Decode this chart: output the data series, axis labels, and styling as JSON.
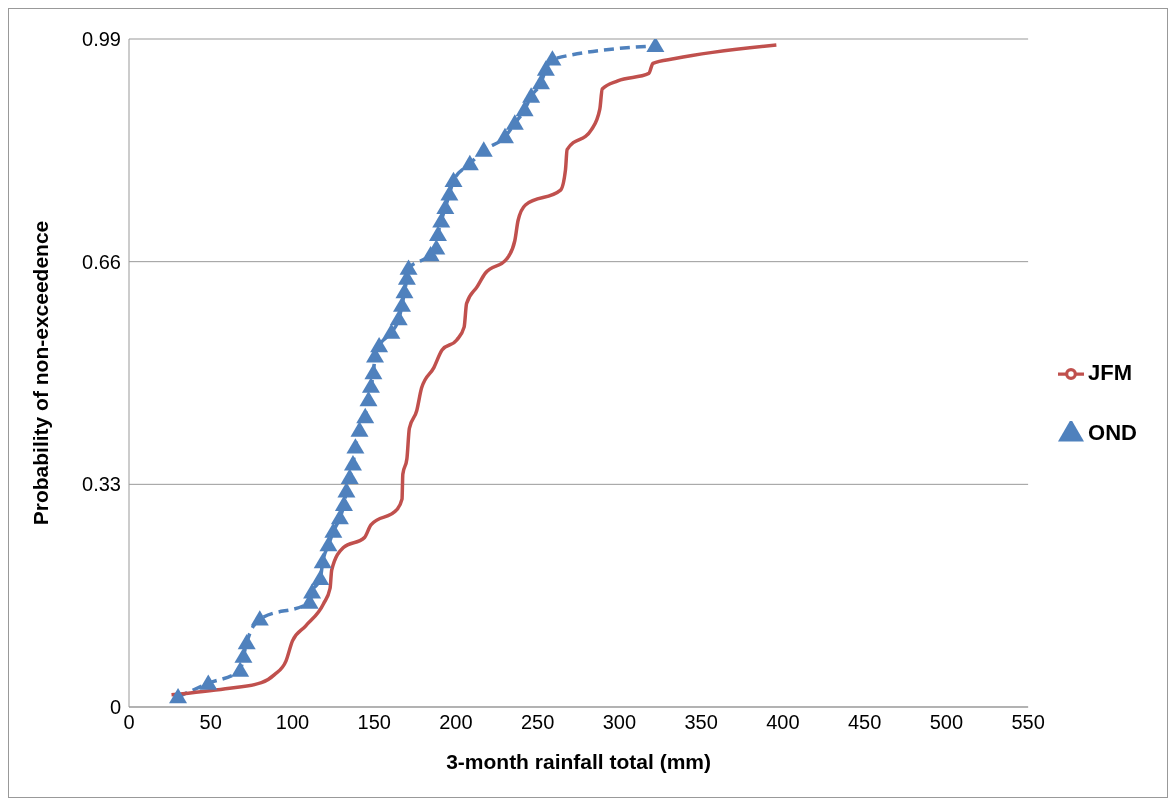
{
  "chart_data": {
    "type": "line",
    "xlabel": "3-month rainfall total (mm)",
    "ylabel": "Probability of non-exceedence",
    "xlim": [
      0,
      550
    ],
    "xticks": [
      0,
      50,
      100,
      150,
      200,
      250,
      300,
      350,
      400,
      450,
      500,
      550
    ],
    "ylim": [
      0,
      0.99
    ],
    "yticks": [
      0,
      0.33,
      0.66,
      0.99
    ],
    "grid": "y",
    "legend": "right",
    "series": [
      {
        "name": "OND",
        "color": "#4f81bd",
        "marker": "triangle",
        "line_style": "dashed",
        "x": [
          30,
          48.5,
          68,
          70,
          72,
          80,
          110.5,
          112,
          117,
          118.5,
          122,
          125,
          129,
          131.5,
          133,
          135,
          137,
          138.5,
          141,
          144.5,
          146.5,
          148,
          149.5,
          150.5,
          153,
          160.5,
          165,
          167,
          168.5,
          170,
          171,
          184.5,
          188,
          189,
          191,
          193.5,
          196,
          198.5,
          208.5,
          217,
          230,
          236,
          242,
          246,
          252,
          255,
          259,
          322
        ],
        "values": [
          0.015,
          0.035,
          0.054,
          0.075,
          0.095,
          0.13,
          0.155,
          0.17,
          0.19,
          0.215,
          0.24,
          0.26,
          0.28,
          0.3,
          0.32,
          0.34,
          0.36,
          0.385,
          0.41,
          0.43,
          0.455,
          0.475,
          0.495,
          0.52,
          0.535,
          0.555,
          0.575,
          0.595,
          0.615,
          0.635,
          0.65,
          0.67,
          0.68,
          0.7,
          0.72,
          0.74,
          0.76,
          0.78,
          0.805,
          0.825,
          0.845,
          0.865,
          0.885,
          0.905,
          0.925,
          0.945,
          0.96,
          0.98
        ]
      },
      {
        "name": "JFM",
        "color": "#c0504d",
        "marker": "none",
        "line_style": "solid",
        "x": [
          26,
          59,
          81,
          89,
          96,
          100,
          108,
          119,
          123,
          124,
          131,
          144,
          148,
          164,
          167,
          167.5,
          170,
          171.5,
          176,
          179,
          186.5,
          191.5,
          200.5,
          205,
          206.5,
          213,
          218,
          231,
          236,
          238,
          242.5,
          264,
          267,
          268,
          283,
          288,
          289.5,
          299,
          318,
          320.5,
          334,
          396
        ],
        "values": [
          0.018,
          0.027,
          0.036,
          0.048,
          0.068,
          0.098,
          0.12,
          0.153,
          0.176,
          0.203,
          0.236,
          0.251,
          0.27,
          0.293,
          0.308,
          0.345,
          0.368,
          0.413,
          0.439,
          0.473,
          0.503,
          0.529,
          0.544,
          0.563,
          0.598,
          0.623,
          0.643,
          0.664,
          0.691,
          0.721,
          0.744,
          0.766,
          0.796,
          0.826,
          0.856,
          0.886,
          0.916,
          0.928,
          0.939,
          0.954,
          0.961,
          0.981
        ]
      }
    ]
  }
}
